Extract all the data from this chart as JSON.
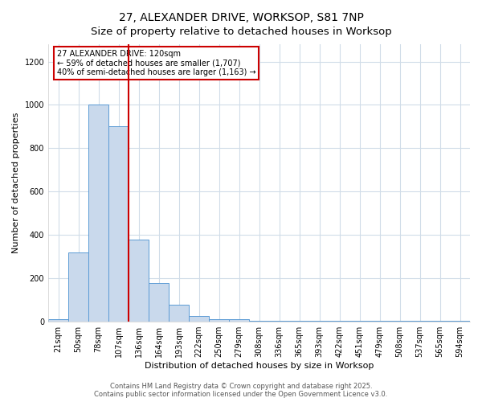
{
  "title1": "27, ALEXANDER DRIVE, WORKSOP, S81 7NP",
  "title2": "Size of property relative to detached houses in Worksop",
  "xlabel": "Distribution of detached houses by size in Worksop",
  "ylabel": "Number of detached properties",
  "categories": [
    "21sqm",
    "50sqm",
    "78sqm",
    "107sqm",
    "136sqm",
    "164sqm",
    "193sqm",
    "222sqm",
    "250sqm",
    "279sqm",
    "308sqm",
    "336sqm",
    "365sqm",
    "393sqm",
    "422sqm",
    "451sqm",
    "479sqm",
    "508sqm",
    "537sqm",
    "565sqm",
    "594sqm"
  ],
  "values": [
    10,
    320,
    1000,
    900,
    380,
    180,
    80,
    25,
    10,
    10,
    5,
    4,
    3,
    3,
    3,
    3,
    3,
    3,
    3,
    3,
    3
  ],
  "bar_color": "#c9d9ec",
  "bar_edge_color": "#5b9bd5",
  "red_line_x": 3.5,
  "red_line_color": "#cc0000",
  "ylim": [
    0,
    1280
  ],
  "yticks": [
    0,
    200,
    400,
    600,
    800,
    1000,
    1200
  ],
  "annotation_text_line1": "27 ALEXANDER DRIVE: 120sqm",
  "annotation_text_line2": "← 59% of detached houses are smaller (1,707)",
  "annotation_text_line3": "40% of semi-detached houses are larger (1,163) →",
  "annotation_box_color": "#ffffff",
  "annotation_box_edge_color": "#cc0000",
  "footer1": "Contains HM Land Registry data © Crown copyright and database right 2025.",
  "footer2": "Contains public sector information licensed under the Open Government Licence v3.0.",
  "background_color": "#ffffff",
  "grid_color": "#d0dce8",
  "title1_fontsize": 10,
  "title2_fontsize": 9.5,
  "axis_label_fontsize": 8,
  "tick_fontsize": 7,
  "annotation_fontsize": 7,
  "footer_fontsize": 6
}
